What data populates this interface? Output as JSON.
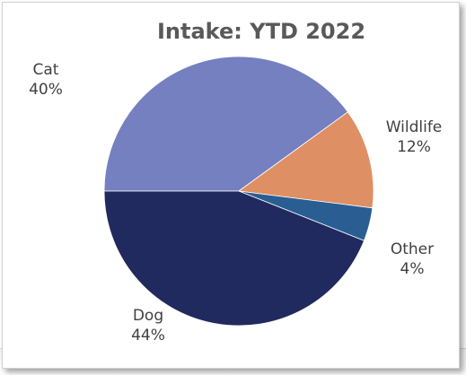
{
  "chart_data": {
    "type": "pie",
    "title": "Intake: YTD 2022",
    "slices": [
      {
        "label": "Cat",
        "value": 40,
        "value_label": "40%",
        "color": "#7480c0"
      },
      {
        "label": "Wildlife",
        "value": 12,
        "value_label": "12%",
        "color": "#de8f63"
      },
      {
        "label": "Other",
        "value": 4,
        "value_label": "4%",
        "color": "#2a5e92"
      },
      {
        "label": "Dog",
        "value": 44,
        "value_label": "44%",
        "color": "#212a5e"
      }
    ],
    "legend": "none",
    "labels": "outside"
  }
}
